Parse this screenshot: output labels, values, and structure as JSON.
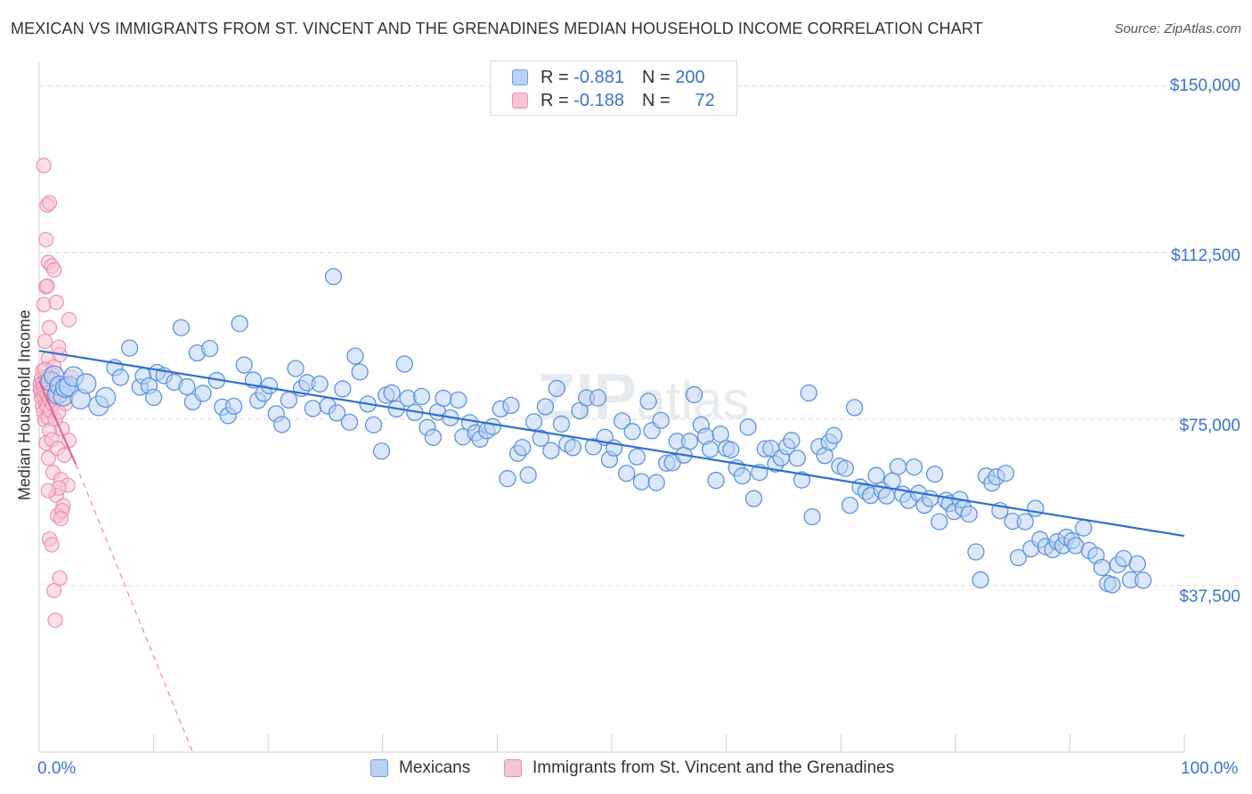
{
  "title": "MEXICAN VS IMMIGRANTS FROM ST. VINCENT AND THE GRENADINES MEDIAN HOUSEHOLD INCOME CORRELATION CHART",
  "source": "Source: ZipAtlas.com",
  "watermark": "ZIPatlas",
  "legend_top": {
    "rows": [
      {
        "r_label": "R =",
        "r_value": "-0.881",
        "n_label": "N =",
        "n_value": "200",
        "color": "#5b93e0"
      },
      {
        "r_label": "R =",
        "r_value": "-0.188",
        "n_label": "N =",
        "n_value": "72",
        "color": "#ee8fb0"
      }
    ]
  },
  "chart_data": {
    "type": "scatter",
    "title": "MEXICAN VS IMMIGRANTS FROM ST. VINCENT AND THE GRENADINES MEDIAN HOUSEHOLD INCOME CORRELATION CHART",
    "xlabel": "",
    "ylabel": "Median Household Income",
    "xlim": [
      0,
      100
    ],
    "ylim": [
      0,
      153750
    ],
    "x_tick_labels": [
      "0.0%",
      "100.0%"
    ],
    "y_ticks": [
      37500,
      75000,
      112500,
      150000
    ],
    "y_tick_labels": [
      "$37,500",
      "$75,000",
      "$112,500",
      "$150,000"
    ],
    "grid": true,
    "legend_position": "bottom",
    "series": [
      {
        "name": "Mexicans",
        "color": "#5b93e0",
        "fill": "#b9d1f3",
        "r": -0.881,
        "n": 200,
        "trend": {
          "x": [
            0,
            100
          ],
          "y": [
            90400,
            48700
          ]
        },
        "points": [
          [
            1.0,
            83500
          ],
          [
            1.3,
            84800
          ],
          [
            1.6,
            80600
          ],
          [
            1.8,
            82500
          ],
          [
            2.1,
            80200
          ],
          [
            2.3,
            82100
          ],
          [
            2.6,
            82400
          ],
          [
            3.0,
            84600
          ],
          [
            3.6,
            79500
          ],
          [
            4.1,
            83000
          ],
          [
            5.2,
            78000
          ],
          [
            5.8,
            79900
          ],
          [
            6.6,
            86600
          ],
          [
            7.1,
            84400
          ],
          [
            7.9,
            91000
          ],
          [
            8.8,
            82200
          ],
          [
            9.1,
            84700
          ],
          [
            9.6,
            82500
          ],
          [
            10.0,
            79900
          ],
          [
            10.3,
            85500
          ],
          [
            10.9,
            84800
          ],
          [
            11.8,
            83300
          ],
          [
            12.4,
            95600
          ],
          [
            12.9,
            82300
          ],
          [
            13.4,
            78900
          ],
          [
            13.8,
            89900
          ],
          [
            14.3,
            80800
          ],
          [
            14.9,
            90900
          ],
          [
            15.5,
            83700
          ],
          [
            16.0,
            77700
          ],
          [
            16.5,
            75800
          ],
          [
            17.0,
            77900
          ],
          [
            17.5,
            96500
          ],
          [
            17.9,
            87200
          ],
          [
            18.7,
            83800
          ],
          [
            19.1,
            79200
          ],
          [
            19.6,
            80800
          ],
          [
            20.1,
            82500
          ],
          [
            20.7,
            76200
          ],
          [
            21.2,
            73800
          ],
          [
            21.8,
            79300
          ],
          [
            22.4,
            86400
          ],
          [
            22.9,
            81900
          ],
          [
            23.4,
            83200
          ],
          [
            23.9,
            77400
          ],
          [
            24.5,
            82900
          ],
          [
            25.2,
            78000
          ],
          [
            25.7,
            107100
          ],
          [
            26.0,
            76400
          ],
          [
            26.5,
            81800
          ],
          [
            27.1,
            74300
          ],
          [
            27.6,
            89200
          ],
          [
            28.0,
            85600
          ],
          [
            28.7,
            78400
          ],
          [
            29.2,
            73700
          ],
          [
            29.9,
            67800
          ],
          [
            30.3,
            80400
          ],
          [
            30.8,
            80900
          ],
          [
            31.2,
            77300
          ],
          [
            31.9,
            87400
          ],
          [
            32.2,
            79700
          ],
          [
            32.8,
            76500
          ],
          [
            33.4,
            80100
          ],
          [
            33.9,
            73100
          ],
          [
            34.4,
            70900
          ],
          [
            34.8,
            76600
          ],
          [
            35.3,
            79700
          ],
          [
            35.9,
            75300
          ],
          [
            36.6,
            79300
          ],
          [
            37.0,
            71000
          ],
          [
            37.6,
            74200
          ],
          [
            38.1,
            71900
          ],
          [
            38.5,
            70500
          ],
          [
            39.1,
            72400
          ],
          [
            39.6,
            73300
          ],
          [
            40.3,
            77300
          ],
          [
            40.9,
            61600
          ],
          [
            41.2,
            78100
          ],
          [
            41.8,
            67300
          ],
          [
            42.2,
            68600
          ],
          [
            42.7,
            62400
          ],
          [
            43.2,
            74400
          ],
          [
            43.8,
            70700
          ],
          [
            44.2,
            77800
          ],
          [
            44.7,
            67900
          ],
          [
            45.2,
            81900
          ],
          [
            45.6,
            73900
          ],
          [
            46.1,
            69400
          ],
          [
            46.6,
            68600
          ],
          [
            47.2,
            76900
          ],
          [
            47.8,
            79800
          ],
          [
            48.4,
            68800
          ],
          [
            48.8,
            79800
          ],
          [
            49.4,
            70900
          ],
          [
            49.8,
            65900
          ],
          [
            50.2,
            68500
          ],
          [
            50.9,
            74600
          ],
          [
            51.3,
            62800
          ],
          [
            51.8,
            72200
          ],
          [
            52.2,
            66500
          ],
          [
            52.6,
            60900
          ],
          [
            53.2,
            79000
          ],
          [
            53.5,
            72400
          ],
          [
            53.9,
            60700
          ],
          [
            54.3,
            74700
          ],
          [
            54.8,
            65100
          ],
          [
            55.3,
            65200
          ],
          [
            55.7,
            70000
          ],
          [
            56.3,
            66900
          ],
          [
            56.8,
            70000
          ],
          [
            57.2,
            80500
          ],
          [
            57.8,
            73700
          ],
          [
            58.2,
            71100
          ],
          [
            58.6,
            68200
          ],
          [
            59.1,
            61200
          ],
          [
            59.5,
            71600
          ],
          [
            60.0,
            68400
          ],
          [
            60.4,
            68100
          ],
          [
            60.9,
            64000
          ],
          [
            61.4,
            62200
          ],
          [
            61.9,
            73200
          ],
          [
            62.4,
            57100
          ],
          [
            62.9,
            63000
          ],
          [
            63.4,
            68300
          ],
          [
            63.9,
            68400
          ],
          [
            64.3,
            64900
          ],
          [
            64.8,
            66300
          ],
          [
            65.3,
            68800
          ],
          [
            65.7,
            70200
          ],
          [
            66.2,
            66200
          ],
          [
            66.6,
            61300
          ],
          [
            67.2,
            80900
          ],
          [
            67.5,
            53000
          ],
          [
            68.1,
            68800
          ],
          [
            68.6,
            66800
          ],
          [
            69.0,
            69800
          ],
          [
            69.4,
            71300
          ],
          [
            69.9,
            64400
          ],
          [
            70.4,
            63900
          ],
          [
            70.8,
            55600
          ],
          [
            71.2,
            77600
          ],
          [
            71.7,
            59700
          ],
          [
            72.2,
            58700
          ],
          [
            72.6,
            57800
          ],
          [
            73.1,
            62300
          ],
          [
            73.6,
            59000
          ],
          [
            74.0,
            57700
          ],
          [
            74.5,
            61100
          ],
          [
            75.0,
            64300
          ],
          [
            75.4,
            58100
          ],
          [
            75.9,
            56700
          ],
          [
            76.4,
            64200
          ],
          [
            76.8,
            58300
          ],
          [
            77.3,
            55600
          ],
          [
            77.8,
            57100
          ],
          [
            78.2,
            62600
          ],
          [
            78.6,
            51900
          ],
          [
            79.2,
            56700
          ],
          [
            79.5,
            56000
          ],
          [
            79.9,
            54200
          ],
          [
            80.4,
            56900
          ],
          [
            80.7,
            54900
          ],
          [
            81.2,
            53600
          ],
          [
            81.8,
            45100
          ],
          [
            82.2,
            38800
          ],
          [
            82.7,
            62200
          ],
          [
            83.2,
            60600
          ],
          [
            83.6,
            62000
          ],
          [
            83.9,
            54400
          ],
          [
            84.4,
            62800
          ],
          [
            85.0,
            52000
          ],
          [
            85.5,
            43800
          ],
          [
            86.1,
            51900
          ],
          [
            86.6,
            45800
          ],
          [
            87.0,
            54900
          ],
          [
            87.4,
            47900
          ],
          [
            87.9,
            46300
          ],
          [
            88.5,
            45600
          ],
          [
            88.9,
            47400
          ],
          [
            89.4,
            46500
          ],
          [
            89.7,
            48400
          ],
          [
            90.2,
            47600
          ],
          [
            90.5,
            46500
          ],
          [
            91.2,
            50500
          ],
          [
            91.7,
            45400
          ],
          [
            92.3,
            44300
          ],
          [
            92.8,
            41600
          ],
          [
            93.3,
            38000
          ],
          [
            93.7,
            37700
          ],
          [
            94.2,
            42200
          ],
          [
            94.7,
            43600
          ],
          [
            95.3,
            38800
          ],
          [
            95.9,
            42400
          ],
          [
            96.4,
            38700
          ]
        ]
      },
      {
        "name": "Immigrants from St. Vincent and the Grenadines",
        "color": "#ee8fb0",
        "fill": "#f7c5d4",
        "r": -0.188,
        "n": 72,
        "trend": {
          "x": [
            0,
            3.2
          ],
          "y": [
            83500,
            64800
          ],
          "dash_to": [
            13.4,
            0
          ]
        },
        "points": [
          [
            0.1,
            82900
          ],
          [
            0.1,
            81500
          ],
          [
            0.2,
            84100
          ],
          [
            0.2,
            80900
          ],
          [
            0.2,
            79800
          ],
          [
            0.3,
            83100
          ],
          [
            0.3,
            77900
          ],
          [
            0.3,
            85900
          ],
          [
            0.4,
            76600
          ],
          [
            0.4,
            80200
          ],
          [
            0.4,
            82500
          ],
          [
            0.5,
            74800
          ],
          [
            0.5,
            81200
          ],
          [
            0.5,
            92500
          ],
          [
            0.6,
            78200
          ],
          [
            0.6,
            83900
          ],
          [
            0.6,
            69600
          ],
          [
            0.7,
            80700
          ],
          [
            0.7,
            77700
          ],
          [
            0.7,
            84700
          ],
          [
            0.8,
            75300
          ],
          [
            0.8,
            88600
          ],
          [
            0.8,
            66200
          ],
          [
            0.9,
            79300
          ],
          [
            0.9,
            72500
          ],
          [
            1.0,
            81100
          ],
          [
            1.0,
            76900
          ],
          [
            1.1,
            85100
          ],
          [
            1.1,
            70400
          ],
          [
            1.2,
            78400
          ],
          [
            1.2,
            63000
          ],
          [
            1.3,
            80400
          ],
          [
            1.3,
            86800
          ],
          [
            1.4,
            74900
          ],
          [
            1.5,
            57800
          ],
          [
            1.5,
            80300
          ],
          [
            1.6,
            68400
          ],
          [
            1.7,
            76600
          ],
          [
            1.8,
            89500
          ],
          [
            1.9,
            61400
          ],
          [
            2.0,
            72800
          ],
          [
            2.1,
            55500
          ],
          [
            2.2,
            66900
          ],
          [
            2.3,
            78500
          ],
          [
            2.5,
            60100
          ],
          [
            2.6,
            70200
          ],
          [
            2.8,
            84400
          ],
          [
            0.4,
            132100
          ],
          [
            0.6,
            115400
          ],
          [
            0.7,
            123200
          ],
          [
            0.8,
            110300
          ],
          [
            0.4,
            100800
          ],
          [
            0.6,
            104800
          ],
          [
            0.9,
            95600
          ],
          [
            1.1,
            109500
          ],
          [
            1.3,
            108600
          ],
          [
            1.5,
            101300
          ],
          [
            1.7,
            91200
          ],
          [
            2.6,
            97400
          ],
          [
            0.7,
            105000
          ],
          [
            0.9,
            123700
          ],
          [
            0.5,
            86200
          ],
          [
            0.9,
            48000
          ],
          [
            1.1,
            46700
          ],
          [
            1.3,
            36400
          ],
          [
            1.4,
            29700
          ],
          [
            1.6,
            53300
          ],
          [
            1.7,
            59500
          ],
          [
            1.8,
            39200
          ],
          [
            2.0,
            54400
          ],
          [
            1.9,
            52600
          ],
          [
            0.8,
            58900
          ]
        ]
      }
    ]
  }
}
